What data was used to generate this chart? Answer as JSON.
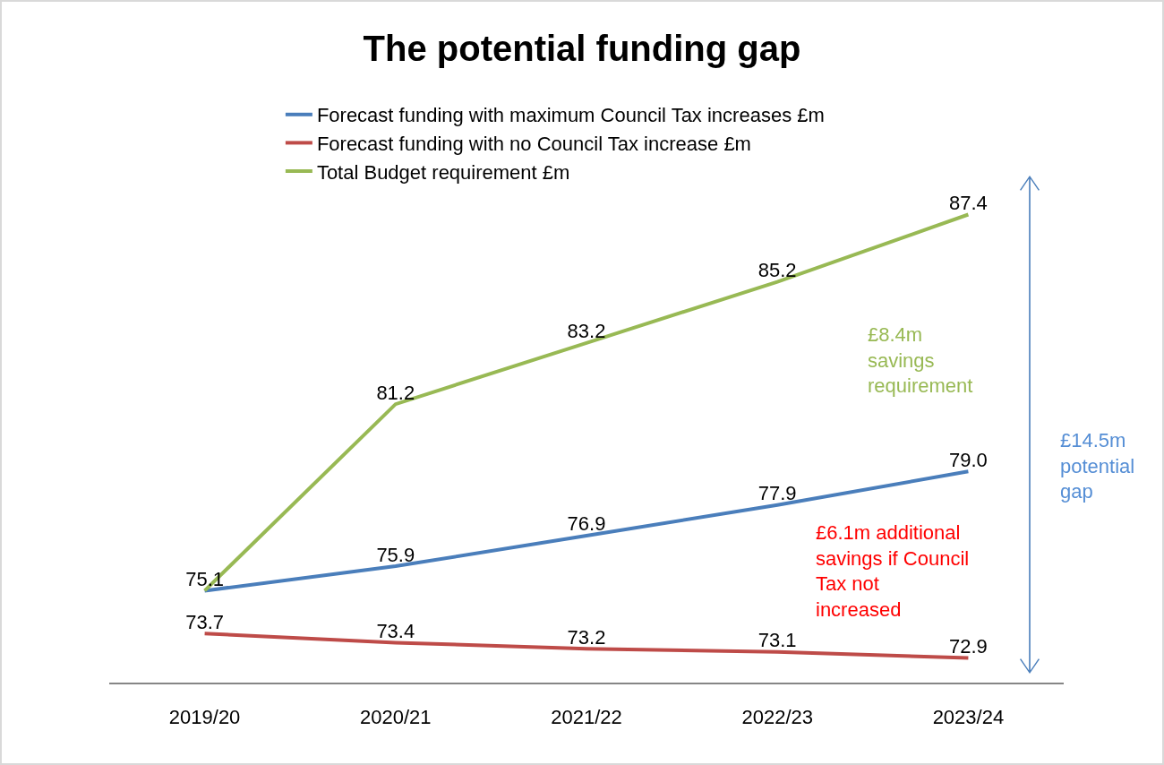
{
  "chart_data": {
    "type": "line",
    "title": "The potential funding gap",
    "categories": [
      "2019/20",
      "2020/21",
      "2021/22",
      "2022/23",
      "2023/24"
    ],
    "series": [
      {
        "name": "Forecast funding with maximum Council Tax increases £m",
        "color": "#4a7ebb",
        "values": [
          75.1,
          75.9,
          76.9,
          77.9,
          79.0
        ],
        "value_labels": [
          null,
          "75.9",
          "76.9",
          "77.9",
          "79.0"
        ]
      },
      {
        "name": "Forecast funding with no Council Tax increase £m",
        "color": "#be4b48",
        "values": [
          73.7,
          73.4,
          73.2,
          73.1,
          72.9
        ],
        "value_labels": [
          "73.7",
          "73.4",
          "73.2",
          "73.1",
          "72.9"
        ]
      },
      {
        "name": "Total Budget requirement £m",
        "color": "#98b954",
        "values": [
          75.1,
          81.2,
          83.2,
          85.2,
          87.4
        ],
        "value_labels": [
          "75.1",
          "81.2",
          "83.2",
          "85.2",
          "87.4"
        ]
      }
    ],
    "annotations": [
      "£8.4m\nsavings\nrequirement",
      "£6.1m additional\nsavings if Council\nTax not\nincreased",
      "£14.5m\npotential\ngap"
    ],
    "legend": "top left",
    "grid": false,
    "marker": "none",
    "line_style": "solid",
    "tick_labels": "x"
  }
}
